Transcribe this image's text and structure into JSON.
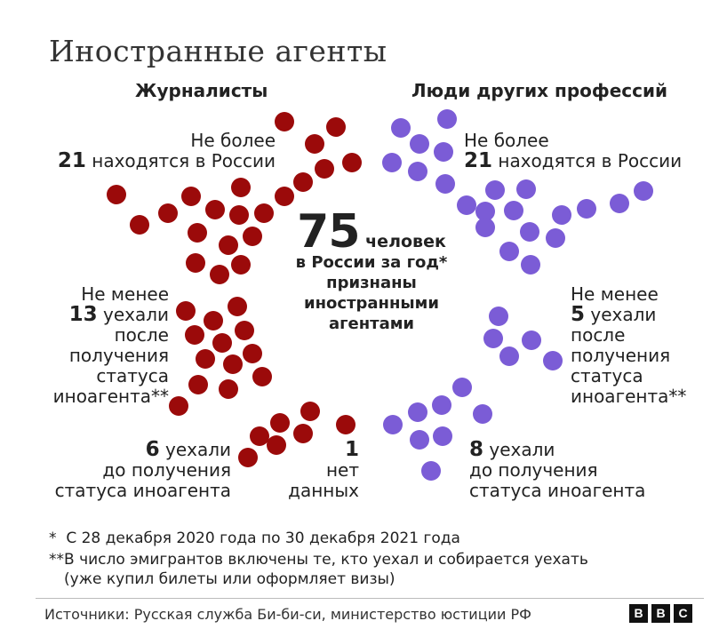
{
  "title": "Иностранные агенты",
  "columns": {
    "left": "Журналисты",
    "right": "Люди других профессий"
  },
  "center": {
    "number": "75",
    "word": "человек",
    "line2": "в России за год*",
    "line3": "признаны",
    "line4": "иностранными",
    "line5": "агентами"
  },
  "labels": {
    "left_in_russia": {
      "l1": "Не более",
      "num": "21",
      "l2": "находятся в России"
    },
    "left_left_after": {
      "l1": "Не менее",
      "num": "13",
      "l2": "уехали",
      "l3": "после",
      "l4": "получения",
      "l5": "статуса",
      "l6": "иноагента**"
    },
    "left_left_before": {
      "num": "6",
      "l1": "уехали",
      "l2": "до получения",
      "l3": "статуса иноагента"
    },
    "left_no_data": {
      "num": "1",
      "l1": "нет",
      "l2": "данных"
    },
    "right_in_russia": {
      "l1": "Не более",
      "num": "21",
      "l2": "находятся в России"
    },
    "right_left_after": {
      "l1": "Не менее",
      "num": "5",
      "l2": "уехали",
      "l3": "после",
      "l4": "получения",
      "l5": "статуса",
      "l6": "иноагента**"
    },
    "right_left_before": {
      "num": "8",
      "l1": "уехали",
      "l2": "до получения",
      "l3": "статуса иноагента"
    }
  },
  "notes": {
    "n1_mark": "*",
    "n1": "С 28 декабря 2020 года по 30 декабря 2021 года",
    "n2_mark": "**",
    "n2a": "В число эмигрантов включены те, кто уехал и собирается уехать",
    "n2b": "(уже купил билеты или оформляет визы)"
  },
  "footer": "Источники: Русская служба Би-би-си, министерство юстиции РФ",
  "logo": [
    "B",
    "B",
    "C"
  ],
  "colors": {
    "journalists": "#9b0a0a",
    "others": "#7b5cd6"
  },
  "chart_data": {
    "type": "dot-grid",
    "total": 75,
    "groups": [
      {
        "category": "Журналисты",
        "status": "находятся в России",
        "count": 21
      },
      {
        "category": "Журналисты",
        "status": "уехали после получения статуса иноагента",
        "count": 13
      },
      {
        "category": "Журналисты",
        "status": "уехали до получения статуса иноагента",
        "count": 6
      },
      {
        "category": "Журналисты",
        "status": "нет данных",
        "count": 1
      },
      {
        "category": "Люди других профессий",
        "status": "находятся в России",
        "count": 21
      },
      {
        "category": "Люди других профессий",
        "status": "уехали после получения статуса иноагента",
        "count": 5
      },
      {
        "category": "Люди других профессий",
        "status": "уехали до получения статуса иноагента",
        "count": 8
      }
    ]
  }
}
